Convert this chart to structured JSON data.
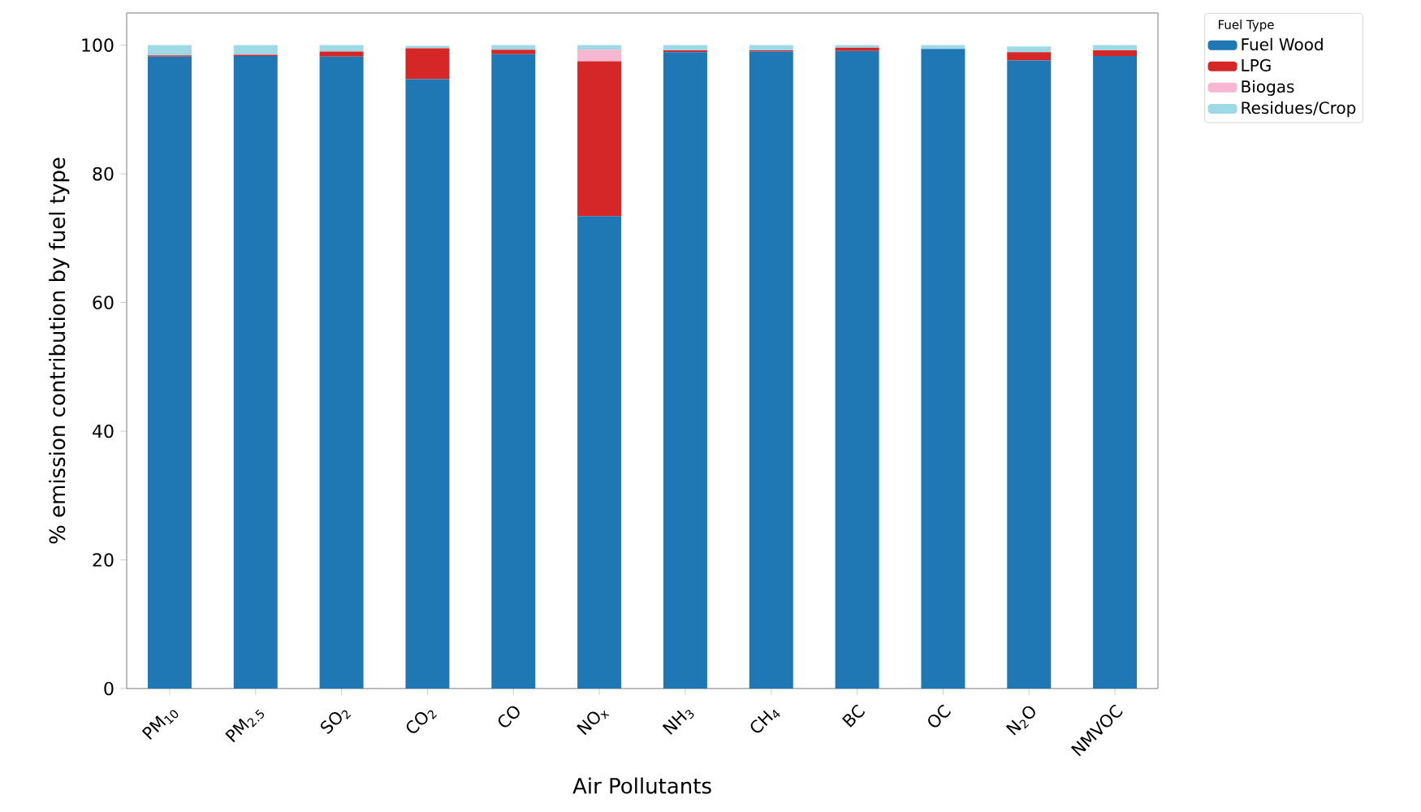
{
  "chart_data": {
    "type": "bar",
    "stacked": true,
    "xlabel": "Air Pollutants",
    "ylabel": "% emission contribution by fuel type",
    "legend_title": "Fuel Type",
    "categories": [
      "PM$_{10}$",
      "PM$_{2.5}$",
      "SO$_{2}$",
      "CO$_{2}$",
      "CO",
      "NO$_{x}$",
      "NH$_{3}$",
      "CH$_{4}$",
      "BC",
      "OC",
      "N$_{2}$O",
      "NMVOC"
    ],
    "series": [
      {
        "name": "Fuel Wood",
        "color": "#1f77b4",
        "values": [
          98.2,
          98.3,
          98.2,
          94.7,
          98.6,
          73.4,
          98.9,
          99.0,
          99.1,
          99.4,
          97.6,
          98.3
        ]
      },
      {
        "name": "LPG",
        "color": "#d62728",
        "values": [
          0.2,
          0.2,
          0.8,
          4.8,
          0.7,
          24.1,
          0.3,
          0.2,
          0.5,
          0,
          1.3,
          0.9
        ]
      },
      {
        "name": "Biogas",
        "color": "#f7b6d2",
        "values": [
          0,
          0,
          0,
          null,
          0,
          1.8,
          0,
          0,
          0,
          0,
          null,
          0
        ]
      },
      {
        "name": "Residues/Crop",
        "color": "#9edae5",
        "values": [
          1.6,
          1.5,
          1.0,
          0.4,
          0.7,
          0.7,
          0.8,
          0.8,
          0.4,
          0.6,
          0.9,
          0.8
        ]
      }
    ],
    "ylim": [
      0,
      105
    ],
    "yticks": [
      0,
      20,
      40,
      60,
      80,
      100
    ],
    "grid": false,
    "legend": "top right"
  }
}
